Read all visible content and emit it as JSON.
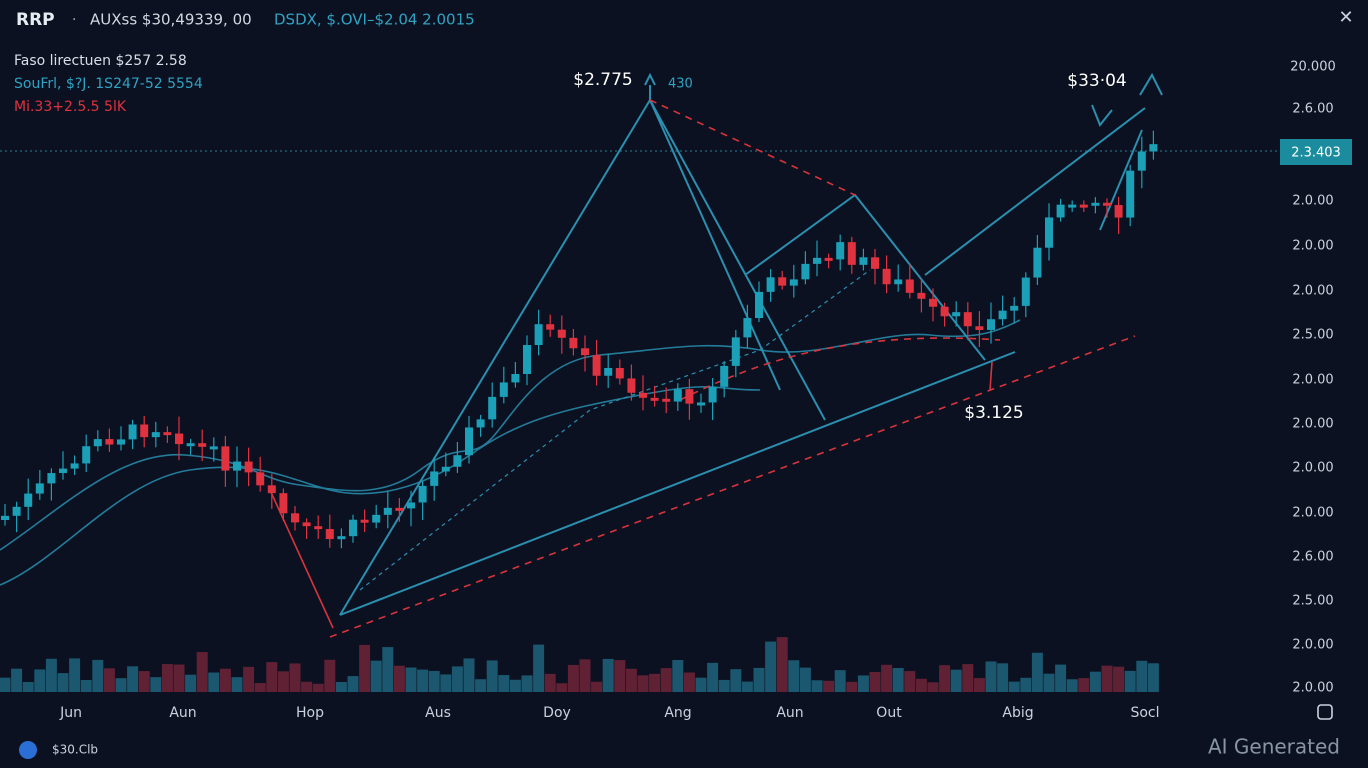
{
  "header": {
    "symbol": "RRP",
    "separator": "·",
    "quote": "AUXss $30,49339, 00",
    "pair": "DSDX, $.OVI–$2.04 2.0015",
    "close": "✕"
  },
  "legend": [
    "Faso lirectuen  $257 2.58",
    "SouFrl, $?J. 1S247-52 5554",
    "Mi.33+2.5.5 5lK"
  ],
  "annotations": {
    "peak": "$2.775",
    "peak_note": "430",
    "top": "$33·04",
    "low": "$3.125"
  },
  "price_tag": "2.3.403",
  "price_axis": [
    "20.000",
    "2.6.00",
    "2.0.00",
    "2.0.00",
    "2.0.00",
    "2.5.00",
    "2.0.00",
    "2.0.00",
    "2.0.00",
    "2.0.00",
    "2.6.00",
    "2.5.00",
    "2.0.00",
    "2.0.00"
  ],
  "time_axis": [
    "Jun",
    "Aun",
    "Hop",
    "Aus",
    "Doy",
    "Ang",
    "Aun",
    "Out",
    "Abig",
    "Socl"
  ],
  "footer": {
    "left": "$30.Clb",
    "watermark": "AI Generated"
  }
}
